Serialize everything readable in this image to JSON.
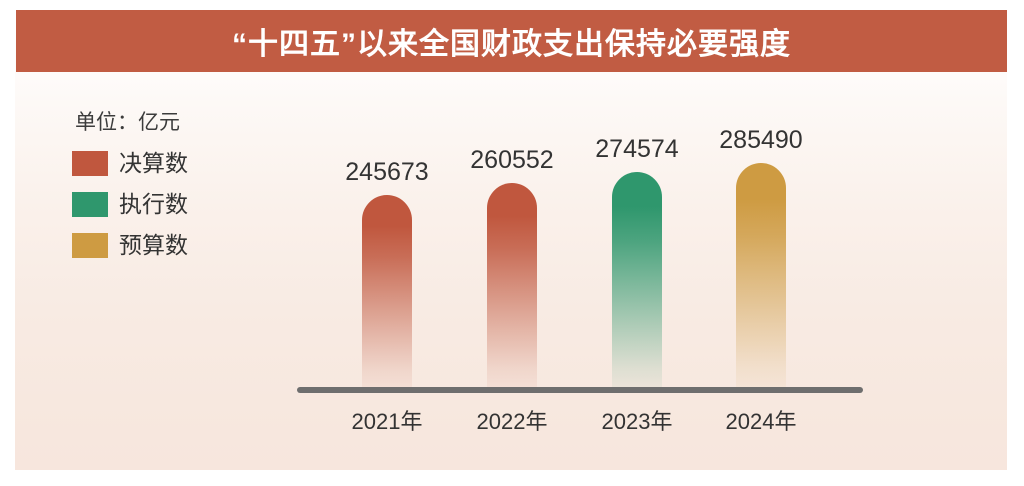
{
  "header": {
    "title": "“十四五”以来全国财政支出保持必要强度"
  },
  "unit_label": "单位：亿元",
  "legend": [
    {
      "label": "决算数",
      "color": "#C0573E"
    },
    {
      "label": "执行数",
      "color": "#2F976D"
    },
    {
      "label": "预算数",
      "color": "#CE9B42"
    }
  ],
  "colors": {
    "header_bg": "#C15C43",
    "header_text": "#FFFFFF",
    "axis": "#6E6E6E",
    "text": "#333333",
    "background_top": "#FFFFFF",
    "background_bottom": "#F7E6DD"
  },
  "chart_data": {
    "type": "bar",
    "title": "“十四五”以来全国财政支出保持必要强度",
    "unit": "亿元",
    "categories": [
      "2021年",
      "2022年",
      "2023年",
      "2024年"
    ],
    "values": [
      245673,
      260552,
      274574,
      285490
    ],
    "bar_series_name": [
      "决算数",
      "决算数",
      "执行数",
      "预算数"
    ],
    "bar_colors": [
      "#C0573E",
      "#C0573E",
      "#2F976D",
      "#CE9B42"
    ],
    "ylim": [
      0,
      285490
    ],
    "grid": false,
    "legend_position": "top-left",
    "value_labels_shown": true
  }
}
